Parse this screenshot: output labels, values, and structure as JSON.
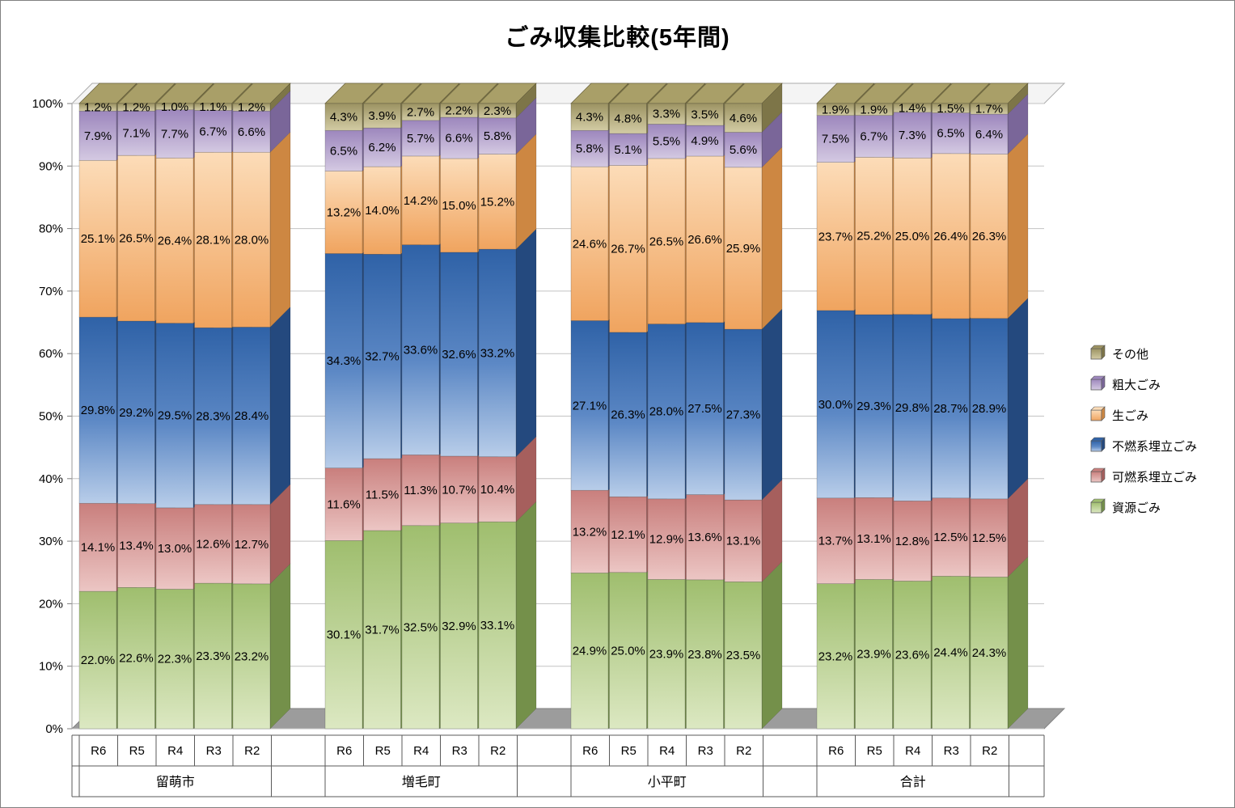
{
  "title": "ごみ収集比較(5年間)",
  "chart_data": {
    "type": "bar",
    "subtype": "stacked-100-percent-3d",
    "title": "ごみ収集比較(5年間)",
    "groups": [
      "留萌市",
      "増毛町",
      "小平町",
      "合計"
    ],
    "years": [
      "R6",
      "R5",
      "R4",
      "R3",
      "R2"
    ],
    "ylim": [
      0,
      100
    ],
    "ytick_step": 10,
    "ytick_suffix": "%",
    "value_suffix": "%",
    "grid": true,
    "legend_position": "right",
    "series": [
      {
        "name": "資源ごみ",
        "color_top": "#9fbe6e",
        "color_bottom": "#dce8c2",
        "color_side": "#74904a",
        "values": [
          [
            22.0,
            22.6,
            22.3,
            23.3,
            23.2
          ],
          [
            30.1,
            31.7,
            32.5,
            32.9,
            33.1
          ],
          [
            24.9,
            25.0,
            23.9,
            23.8,
            23.5
          ],
          [
            23.2,
            23.9,
            23.6,
            24.4,
            24.3
          ]
        ]
      },
      {
        "name": "可燃系埋立ごみ",
        "color_top": "#c97f7d",
        "color_bottom": "#ecc6c4",
        "color_side": "#a65f5d",
        "values": [
          [
            14.1,
            13.4,
            13.0,
            12.6,
            12.7
          ],
          [
            11.6,
            11.5,
            11.3,
            10.7,
            10.4
          ],
          [
            13.2,
            12.1,
            12.9,
            13.6,
            13.1
          ],
          [
            13.7,
            13.1,
            12.8,
            12.5,
            12.5
          ]
        ]
      },
      {
        "name": "不燃系埋立ごみ",
        "color_top": "#2f62a7",
        "color_mid": "#5c88c5",
        "color_bottom": "#b8cde9",
        "color_side": "#24497e",
        "values": [
          [
            29.8,
            29.2,
            29.5,
            28.3,
            28.4
          ],
          [
            34.3,
            32.7,
            33.6,
            32.6,
            33.2
          ],
          [
            27.1,
            26.3,
            28.0,
            27.5,
            27.3
          ],
          [
            30.0,
            29.3,
            29.8,
            28.7,
            28.9
          ]
        ]
      },
      {
        "name": "生ごみ",
        "color_top": "#fcdcb8",
        "color_bottom": "#f0a45f",
        "color_side": "#cd8742",
        "values": [
          [
            25.1,
            26.5,
            26.4,
            28.1,
            28.0
          ],
          [
            13.2,
            14.0,
            14.2,
            15.0,
            15.2
          ],
          [
            24.6,
            26.7,
            26.5,
            26.6,
            25.9
          ],
          [
            23.7,
            25.2,
            25.0,
            26.4,
            26.3
          ]
        ]
      },
      {
        "name": "粗大ごみ",
        "color_top": "#9d87bd",
        "color_bottom": "#d4c9e2",
        "color_side": "#7a6699",
        "values": [
          [
            7.9,
            7.1,
            7.7,
            6.7,
            6.6
          ],
          [
            6.5,
            6.2,
            5.7,
            6.6,
            5.8
          ],
          [
            5.8,
            5.1,
            5.5,
            4.9,
            5.6
          ],
          [
            7.5,
            6.7,
            7.3,
            6.5,
            6.4
          ]
        ]
      },
      {
        "name": "その他",
        "color_top": "#9c9362",
        "color_bottom": "#d2cba4",
        "color_side": "#7d7548",
        "values": [
          [
            1.2,
            1.2,
            1.0,
            1.1,
            1.2
          ],
          [
            4.3,
            3.9,
            2.7,
            2.2,
            2.3
          ],
          [
            4.3,
            4.8,
            3.3,
            3.5,
            4.6
          ],
          [
            1.9,
            1.9,
            1.4,
            1.5,
            1.7
          ]
        ]
      }
    ]
  }
}
